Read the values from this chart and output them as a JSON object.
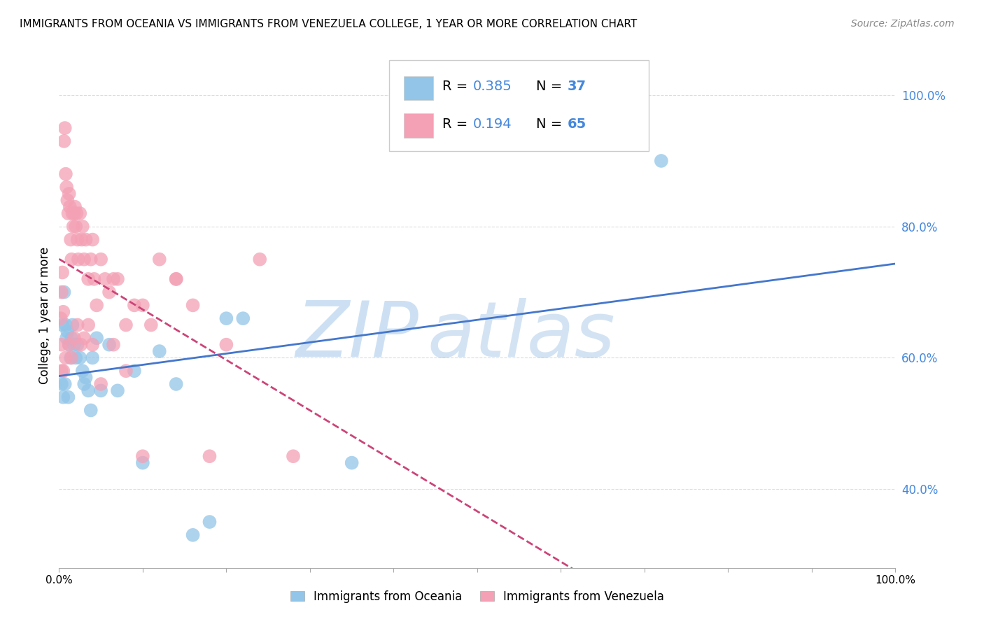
{
  "title": "IMMIGRANTS FROM OCEANIA VS IMMIGRANTS FROM VENEZUELA COLLEGE, 1 YEAR OR MORE CORRELATION CHART",
  "source": "Source: ZipAtlas.com",
  "ylabel": "College, 1 year or more",
  "xlim": [
    0,
    1
  ],
  "ylim": [
    0.28,
    1.05
  ],
  "series": [
    {
      "name": "Immigrants from Oceania",
      "R": "0.385",
      "N": "37",
      "scatter_color": "#92c5e8",
      "line_color": "#4477cc",
      "line_style": "solid",
      "x": [
        0.003,
        0.005,
        0.006,
        0.008,
        0.009,
        0.01,
        0.012,
        0.014,
        0.015,
        0.016,
        0.018,
        0.02,
        0.022,
        0.025,
        0.028,
        0.03,
        0.032,
        0.035,
        0.038,
        0.04,
        0.045,
        0.05,
        0.06,
        0.07,
        0.09,
        0.1,
        0.12,
        0.14,
        0.16,
        0.18,
        0.2,
        0.22,
        0.35,
        0.72,
        0.004,
        0.007,
        0.011
      ],
      "y": [
        0.56,
        0.54,
        0.7,
        0.65,
        0.63,
        0.64,
        0.62,
        0.6,
        0.63,
        0.65,
        0.62,
        0.6,
        0.62,
        0.6,
        0.58,
        0.56,
        0.57,
        0.55,
        0.52,
        0.6,
        0.63,
        0.55,
        0.62,
        0.55,
        0.58,
        0.44,
        0.61,
        0.56,
        0.33,
        0.35,
        0.66,
        0.66,
        0.44,
        0.9,
        0.65,
        0.56,
        0.54
      ]
    },
    {
      "name": "Immigrants from Venezuela",
      "R": "0.194",
      "N": "65",
      "scatter_color": "#f4a0b5",
      "line_color": "#cc4477",
      "line_style": "dashed",
      "x": [
        0.002,
        0.003,
        0.004,
        0.005,
        0.006,
        0.007,
        0.008,
        0.009,
        0.01,
        0.011,
        0.012,
        0.013,
        0.014,
        0.015,
        0.016,
        0.017,
        0.018,
        0.019,
        0.02,
        0.021,
        0.022,
        0.023,
        0.025,
        0.027,
        0.028,
        0.03,
        0.032,
        0.035,
        0.038,
        0.04,
        0.042,
        0.045,
        0.05,
        0.055,
        0.06,
        0.065,
        0.07,
        0.08,
        0.09,
        0.1,
        0.11,
        0.12,
        0.14,
        0.16,
        0.18,
        0.2,
        0.24,
        0.28,
        0.003,
        0.005,
        0.008,
        0.012,
        0.015,
        0.018,
        0.022,
        0.026,
        0.03,
        0.035,
        0.04,
        0.05,
        0.065,
        0.08,
        0.1,
        0.14,
        0.003
      ],
      "y": [
        0.66,
        0.7,
        0.73,
        0.67,
        0.93,
        0.95,
        0.88,
        0.86,
        0.84,
        0.82,
        0.85,
        0.83,
        0.78,
        0.75,
        0.82,
        0.8,
        0.82,
        0.83,
        0.8,
        0.82,
        0.78,
        0.75,
        0.82,
        0.78,
        0.8,
        0.75,
        0.78,
        0.72,
        0.75,
        0.78,
        0.72,
        0.68,
        0.75,
        0.72,
        0.7,
        0.72,
        0.72,
        0.65,
        0.68,
        0.45,
        0.65,
        0.75,
        0.72,
        0.68,
        0.45,
        0.62,
        0.75,
        0.45,
        0.62,
        0.58,
        0.6,
        0.62,
        0.6,
        0.63,
        0.65,
        0.62,
        0.63,
        0.65,
        0.62,
        0.56,
        0.62,
        0.58,
        0.68,
        0.72,
        0.58
      ]
    }
  ],
  "ytick_positions": [
    0.4,
    0.6,
    0.8,
    1.0
  ],
  "ytick_labels": [
    "40.0%",
    "60.0%",
    "80.0%",
    "100.0%"
  ],
  "xtick_positions": [
    0.0,
    0.1,
    0.2,
    0.3,
    0.4,
    0.5,
    0.6,
    0.7,
    0.8,
    0.9,
    1.0
  ],
  "xtick_labels": [
    "0.0%",
    "",
    "",
    "",
    "",
    "",
    "",
    "",
    "",
    "",
    "100.0%"
  ],
  "watermark_zip": "ZIP",
  "watermark_atlas": "atlas",
  "watermark_color": "#c8dff5",
  "background_color": "#ffffff",
  "grid_color": "#dddddd",
  "legend_blue_color": "#4488dd",
  "legend_N_color": "#ee4444"
}
